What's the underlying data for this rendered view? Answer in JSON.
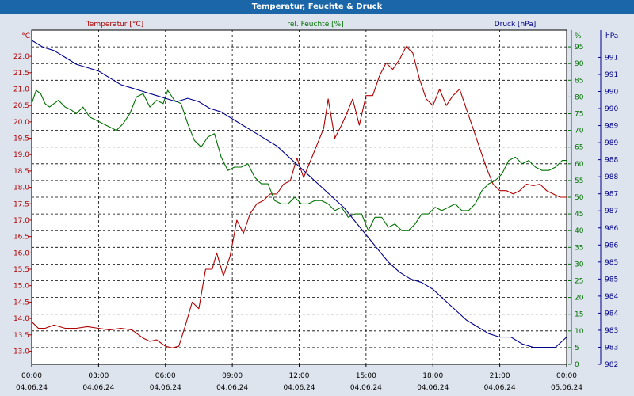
{
  "chart_data": {
    "type": "line",
    "title": "Temperatur, Feuchte & Druck",
    "x_ticks": [
      {
        "time": "00:00",
        "date": "04.06.24"
      },
      {
        "time": "03:00",
        "date": "04.06.24"
      },
      {
        "time": "06:00",
        "date": "04.06.24"
      },
      {
        "time": "09:00",
        "date": "04.06.24"
      },
      {
        "time": "12:00",
        "date": "04.06.24"
      },
      {
        "time": "15:00",
        "date": "04.06.24"
      },
      {
        "time": "18:00",
        "date": "04.06.24"
      },
      {
        "time": "21:00",
        "date": "04.06.24"
      },
      {
        "time": "00:00",
        "date": "05.06.24"
      }
    ],
    "x_range_hours": [
      0,
      24
    ],
    "grid": true,
    "axes": {
      "temperature": {
        "label": "Temperatur [°C]",
        "unit": "°C",
        "color": "#b00000",
        "ylim": [
          12.6,
          22.8
        ],
        "ticks": [
          "13.0",
          "13.5",
          "14.0",
          "14.5",
          "15.0",
          "15.5",
          "16.0",
          "16.5",
          "17.0",
          "17.5",
          "18.0",
          "18.5",
          "19.0",
          "19.5",
          "20.0",
          "20.5",
          "21.0",
          "21.5",
          "22.0"
        ]
      },
      "humidity": {
        "label": "rel. Feuchte [%]",
        "unit": "%",
        "color": "#007000",
        "ylim": [
          0,
          100
        ],
        "ticks": [
          "0",
          "5",
          "10",
          "15",
          "20",
          "25",
          "30",
          "35",
          "40",
          "45",
          "50",
          "55",
          "60",
          "65",
          "70",
          "75",
          "80",
          "85",
          "90",
          "95"
        ]
      },
      "pressure": {
        "label": "Druck [hPa]",
        "unit": "hPa",
        "color": "#00008b",
        "ylim": [
          982,
          991.8
        ],
        "ticks": [
          "982",
          "983",
          "983",
          "984",
          "984",
          "985",
          "985",
          "986",
          "986",
          "987",
          "987",
          "988",
          "988",
          "989",
          "989",
          "990",
          "990",
          "991",
          "991"
        ]
      }
    },
    "series": [
      {
        "name": "Temperatur [°C]",
        "axis": "temperature",
        "color": "#b00000",
        "x": [
          0,
          0.3,
          0.6,
          1,
          1.5,
          2,
          2.5,
          3,
          3.5,
          4,
          4.5,
          5,
          5.3,
          5.6,
          6,
          6.3,
          6.6,
          6.9,
          7.2,
          7.5,
          7.8,
          8.1,
          8.3,
          8.6,
          8.9,
          9.2,
          9.5,
          9.8,
          10.1,
          10.4,
          10.7,
          11,
          11.3,
          11.6,
          11.9,
          12.2,
          12.5,
          12.8,
          13.1,
          13.3,
          13.6,
          13.9,
          14.1,
          14.4,
          14.7,
          15,
          15.3,
          15.6,
          15.9,
          16.2,
          16.5,
          16.8,
          17.1,
          17.4,
          17.7,
          18,
          18.3,
          18.6,
          18.9,
          19.2,
          19.5,
          19.8,
          20.1,
          20.4,
          20.7,
          21,
          21.3,
          21.6,
          21.9,
          22.2,
          22.5,
          22.8,
          23.1,
          23.4,
          23.7,
          24
        ],
        "y": [
          13.9,
          13.7,
          13.7,
          13.8,
          13.7,
          13.7,
          13.75,
          13.7,
          13.65,
          13.7,
          13.65,
          13.4,
          13.3,
          13.35,
          13.15,
          13.1,
          13.15,
          13.8,
          14.5,
          14.3,
          15.5,
          15.5,
          16.0,
          15.3,
          15.9,
          17.0,
          16.6,
          17.2,
          17.5,
          17.6,
          17.8,
          17.8,
          18.1,
          18.2,
          18.9,
          18.3,
          18.8,
          19.3,
          19.8,
          20.7,
          19.5,
          19.9,
          20.2,
          20.7,
          19.9,
          20.8,
          20.8,
          21.4,
          21.8,
          21.6,
          21.9,
          22.3,
          22.1,
          21.3,
          20.7,
          20.5,
          21.0,
          20.5,
          20.8,
          21.0,
          20.4,
          19.8,
          19.2,
          18.6,
          18.1,
          17.9,
          17.9,
          17.8,
          17.9,
          18.1,
          18.05,
          18.1,
          17.9,
          17.8,
          17.7,
          17.7
        ]
      },
      {
        "name": "rel. Feuchte [%]",
        "axis": "humidity",
        "color": "#007000",
        "x": [
          0,
          0.2,
          0.4,
          0.6,
          0.8,
          1,
          1.2,
          1.5,
          1.8,
          2,
          2.3,
          2.6,
          2.9,
          3.2,
          3.5,
          3.8,
          4.1,
          4.4,
          4.7,
          5,
          5.3,
          5.6,
          5.9,
          6.1,
          6.4,
          6.7,
          7,
          7.3,
          7.6,
          7.9,
          8.2,
          8.5,
          8.8,
          9.1,
          9.4,
          9.7,
          10,
          10.3,
          10.6,
          10.9,
          11.2,
          11.5,
          11.8,
          12.1,
          12.4,
          12.7,
          13,
          13.3,
          13.6,
          13.9,
          14.2,
          14.5,
          14.8,
          15.1,
          15.4,
          15.7,
          16,
          16.3,
          16.6,
          16.9,
          17.2,
          17.5,
          17.8,
          18.1,
          18.4,
          18.7,
          19,
          19.3,
          19.6,
          19.9,
          20.2,
          20.5,
          20.8,
          21.1,
          21.4,
          21.7,
          22,
          22.3,
          22.6,
          22.9,
          23.2,
          23.5,
          23.8,
          24
        ],
        "y": [
          78,
          82,
          81,
          78,
          77,
          78,
          79,
          77,
          76,
          75,
          77,
          74,
          73,
          72,
          71,
          70,
          72,
          75,
          80,
          81,
          77,
          79,
          78,
          82,
          79,
          78,
          72,
          67,
          65,
          68,
          69,
          62,
          58,
          59,
          59,
          60,
          56,
          54,
          54,
          49,
          48,
          48,
          50,
          48,
          48,
          49,
          49,
          48,
          46,
          47,
          44,
          45,
          45,
          40,
          44,
          44,
          41,
          42,
          40,
          40,
          42,
          45,
          45,
          47,
          46,
          47,
          48,
          46,
          46,
          48,
          52,
          54,
          55,
          57,
          61,
          62,
          60,
          61,
          59,
          58,
          58,
          59,
          61,
          61
        ]
      },
      {
        "name": "Druck [hPa]",
        "axis": "pressure",
        "color": "#00008b",
        "x": [
          0,
          0.5,
          1,
          1.5,
          2,
          2.5,
          3,
          3.5,
          4,
          4.5,
          5,
          5.5,
          6,
          6.5,
          7,
          7.5,
          8,
          8.5,
          9,
          9.5,
          10,
          10.5,
          11,
          11.5,
          12,
          12.5,
          13,
          13.5,
          14,
          14.5,
          15,
          15.5,
          16,
          16.5,
          17,
          17.5,
          18,
          18.5,
          19,
          19.5,
          20,
          20.5,
          21,
          21.5,
          22,
          22.5,
          23,
          23.5,
          24
        ],
        "y": [
          991.5,
          991.3,
          991.2,
          991.0,
          990.8,
          990.7,
          990.6,
          990.4,
          990.2,
          990.1,
          990.0,
          989.9,
          989.8,
          989.7,
          989.8,
          989.7,
          989.5,
          989.4,
          989.2,
          989.0,
          988.8,
          988.6,
          988.4,
          988.1,
          987.8,
          987.5,
          987.2,
          986.9,
          986.6,
          986.2,
          985.8,
          985.4,
          985.0,
          984.7,
          984.5,
          984.4,
          984.2,
          983.9,
          983.6,
          983.3,
          983.1,
          982.9,
          982.8,
          982.8,
          982.6,
          982.5,
          982.5,
          982.5,
          982.8
        ]
      }
    ]
  }
}
